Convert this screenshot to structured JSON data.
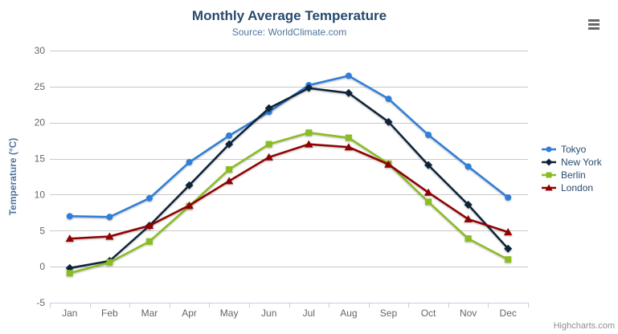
{
  "chart_data": {
    "type": "line",
    "title": "Monthly Average Temperature",
    "subtitle": "Source: WorldClimate.com",
    "ylabel": "Temperature (°C)",
    "xlabel": "",
    "categories": [
      "Jan",
      "Feb",
      "Mar",
      "Apr",
      "May",
      "Jun",
      "Jul",
      "Aug",
      "Sep",
      "Oct",
      "Nov",
      "Dec"
    ],
    "series": [
      {
        "name": "Tokyo",
        "color": "#2f7ed8",
        "marker": "circle",
        "values": [
          7.0,
          6.9,
          9.5,
          14.5,
          18.2,
          21.5,
          25.2,
          26.5,
          23.3,
          18.3,
          13.9,
          9.6
        ]
      },
      {
        "name": "New York",
        "color": "#0d233a",
        "marker": "diamond",
        "values": [
          -0.2,
          0.8,
          5.7,
          11.3,
          17.0,
          22.0,
          24.8,
          24.1,
          20.1,
          14.1,
          8.6,
          2.5
        ]
      },
      {
        "name": "Berlin",
        "color": "#8bbc21",
        "marker": "square",
        "values": [
          -0.9,
          0.6,
          3.5,
          8.4,
          13.5,
          17.0,
          18.6,
          17.9,
          14.3,
          9.0,
          3.9,
          1.0
        ]
      },
      {
        "name": "London",
        "color": "#910000",
        "marker": "triangle",
        "values": [
          3.9,
          4.2,
          5.7,
          8.5,
          11.9,
          15.2,
          17.0,
          16.6,
          14.2,
          10.3,
          6.6,
          4.8
        ]
      }
    ],
    "ylim": [
      -5,
      30
    ],
    "ytick_step": 5,
    "grid": true,
    "legend_position": "right",
    "credits": "Highcharts.com",
    "colors": {
      "grid_line": "#c9c9c9",
      "axis_line": "#c0d0e0",
      "tick_label": "#666666",
      "title_text": "#274b6d",
      "subtitle_text": "#4d759e",
      "legend_text": "#274b6d",
      "credits_text": "#8f8f8f",
      "menu_icon": "#666666"
    }
  },
  "export_menu": {
    "icon": "hamburger-icon"
  }
}
